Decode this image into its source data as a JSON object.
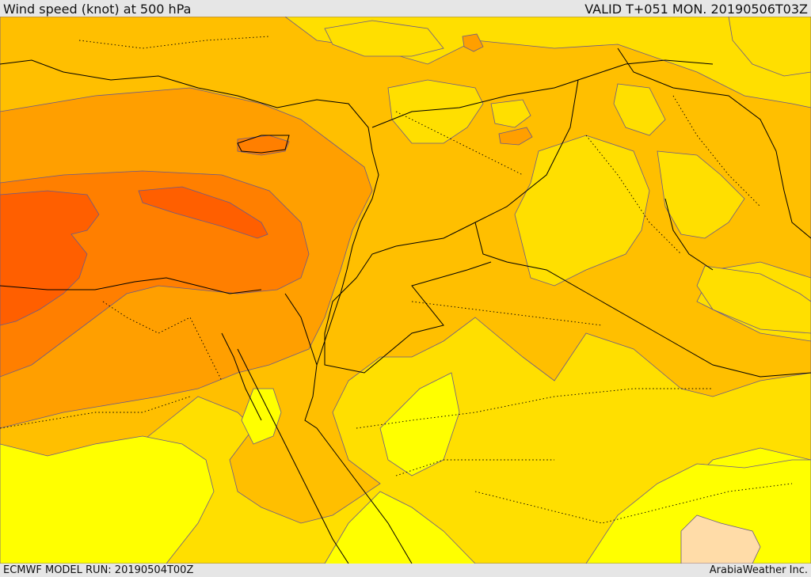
{
  "header": {
    "title": "Wind speed (knot) at 500 hPa",
    "valid": "VALID T+051 MON. 20190506T03Z"
  },
  "footer": {
    "model_run": "ECMWF MODEL RUN: 20190504T00Z",
    "credit": "ArabiaWeather Inc."
  },
  "colors": {
    "band_lowest": "#ffff00",
    "band_low": "#ffdf00",
    "band_mid": "#ffbf00",
    "band_high": "#ff9f00",
    "band_higher": "#ff7f00",
    "band_max": "#ff5f00",
    "calm": "#ffdca8",
    "contour": "#6a5a8a",
    "border": "#000000"
  }
}
